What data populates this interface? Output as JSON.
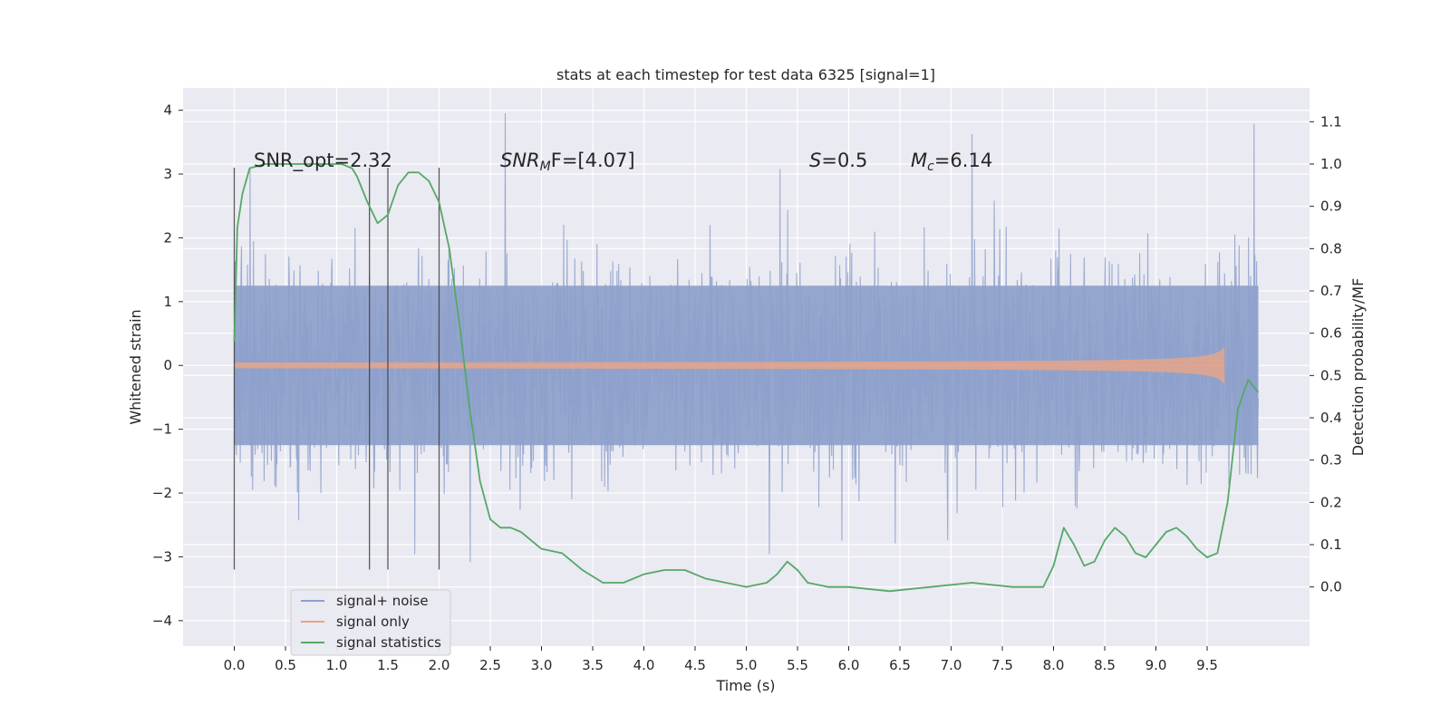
{
  "chart_data": {
    "type": "line",
    "title": "stats at each timestep for test data 6325 [signal=1]",
    "xlabel": "Time (s)",
    "ylabel": "Whitened strain",
    "y2label": "Detection probability/MF",
    "xlim": [
      -0.5,
      10.5
    ],
    "ylim": [
      -4.4,
      4.35
    ],
    "y2lim": [
      -0.14,
      1.18
    ],
    "x_ticks": [
      0.0,
      0.5,
      1.0,
      1.5,
      2.0,
      2.5,
      3.0,
      3.5,
      4.0,
      4.5,
      5.0,
      5.5,
      6.0,
      6.5,
      7.0,
      7.5,
      8.0,
      8.5,
      9.0,
      9.5
    ],
    "y_ticks": [
      4,
      3,
      2,
      1,
      0,
      -1,
      -2,
      -3,
      -4
    ],
    "y2_ticks": [
      1.1,
      1.0,
      0.9,
      0.8,
      0.7,
      0.6,
      0.5,
      0.4,
      0.3,
      0.2,
      0.1,
      0.0
    ],
    "grid": true,
    "legend": {
      "location": "lower-left",
      "entries": [
        {
          "label": "signal+ noise",
          "color": "#8da0cb"
        },
        {
          "label": "signal only",
          "color": "#e5a58a"
        },
        {
          "label": "signal statistics",
          "color": "#55a868"
        }
      ]
    },
    "annotations": {
      "snr_opt": "SNR_opt=2.32",
      "snr_mf_sym": "SNR",
      "snr_mf_sub": "M",
      "snr_mf_rest": "F=[4.07]",
      "s_sym": "S",
      "s_rest": "=0.5",
      "mc_sym": "M",
      "mc_sub": "c",
      "mc_rest": "=6.14"
    },
    "vertical_lines": {
      "x": [
        0.0,
        1.32,
        1.5,
        2.0
      ],
      "ymin": -3.2,
      "ymax": 3.1
    },
    "series": [
      {
        "name": "signal+ noise",
        "axis": "left",
        "kind": "noise",
        "x_range": [
          0.0,
          10.0
        ],
        "core_amplitude": 1.25,
        "typical_peak": 2.2,
        "max": 3.95,
        "min": -4.05
      },
      {
        "name": "signal only",
        "axis": "left",
        "kind": "chirp",
        "x_range": [
          0.0,
          9.67
        ],
        "max_amplitude": 0.3
      },
      {
        "name": "signal statistics",
        "axis": "right",
        "x": [
          0.0,
          0.03,
          0.08,
          0.15,
          0.3,
          0.5,
          0.7,
          0.9,
          1.05,
          1.15,
          1.2,
          1.3,
          1.4,
          1.5,
          1.6,
          1.7,
          1.8,
          1.9,
          2.0,
          2.1,
          2.2,
          2.3,
          2.4,
          2.5,
          2.6,
          2.7,
          2.8,
          3.0,
          3.2,
          3.4,
          3.6,
          3.8,
          4.0,
          4.2,
          4.4,
          4.6,
          4.8,
          5.0,
          5.2,
          5.3,
          5.4,
          5.5,
          5.6,
          5.8,
          6.0,
          6.4,
          6.8,
          7.2,
          7.6,
          7.9,
          8.0,
          8.1,
          8.2,
          8.3,
          8.4,
          8.5,
          8.6,
          8.7,
          8.8,
          8.9,
          9.0,
          9.1,
          9.2,
          9.3,
          9.4,
          9.5,
          9.6,
          9.7,
          9.8,
          9.9,
          10.0
        ],
        "values": [
          0.58,
          0.85,
          0.93,
          0.99,
          1.0,
          1.0,
          1.0,
          1.0,
          1.0,
          0.99,
          0.97,
          0.91,
          0.86,
          0.88,
          0.95,
          0.98,
          0.98,
          0.96,
          0.91,
          0.8,
          0.62,
          0.42,
          0.25,
          0.16,
          0.14,
          0.14,
          0.13,
          0.09,
          0.08,
          0.04,
          0.01,
          0.01,
          0.03,
          0.04,
          0.04,
          0.02,
          0.01,
          0.0,
          0.01,
          0.03,
          0.06,
          0.04,
          0.01,
          0.0,
          0.0,
          -0.01,
          0.0,
          0.01,
          0.0,
          0.0,
          0.05,
          0.14,
          0.1,
          0.05,
          0.06,
          0.11,
          0.14,
          0.12,
          0.08,
          0.07,
          0.1,
          0.13,
          0.14,
          0.12,
          0.09,
          0.07,
          0.08,
          0.2,
          0.42,
          0.49,
          0.46
        ]
      }
    ]
  }
}
